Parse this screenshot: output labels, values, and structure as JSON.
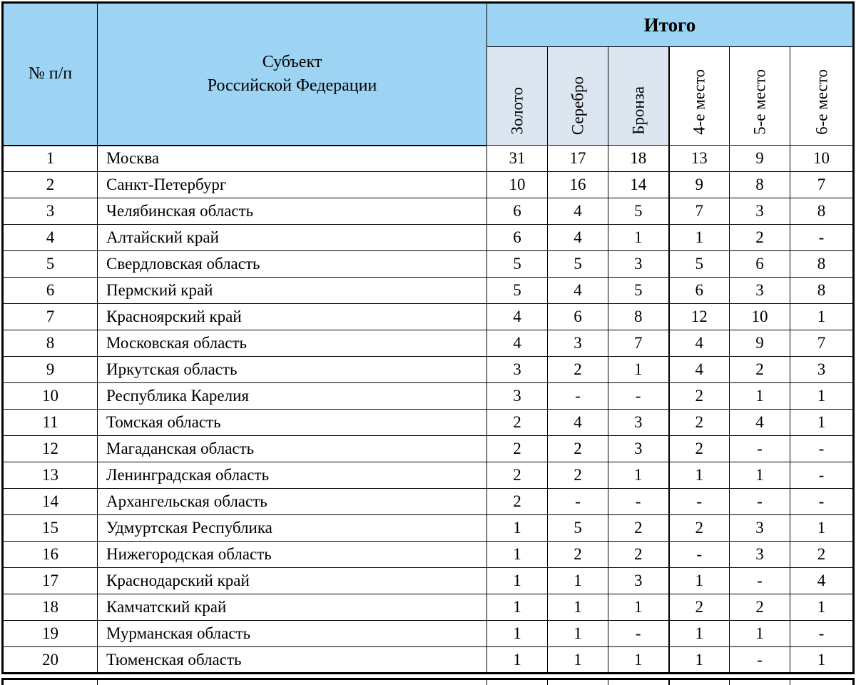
{
  "colors": {
    "header_bg": "#9DD4F3",
    "subheader_bg": "#DCE6F1",
    "border": "#000000",
    "text": "#000000"
  },
  "table": {
    "header": {
      "num_label": "№ п/п",
      "region_line1": "Субъект",
      "region_line2": "Российской Федерации",
      "group_label": "Итого",
      "subcols": [
        {
          "key": "gold",
          "label": "Золото",
          "shaded": true
        },
        {
          "key": "silver",
          "label": "Серебро",
          "shaded": true
        },
        {
          "key": "bronze",
          "label": "Бронза",
          "shaded": true
        },
        {
          "key": "place4",
          "label": "4-е место",
          "shaded": false
        },
        {
          "key": "place5",
          "label": "5-е место",
          "shaded": false
        },
        {
          "key": "place6",
          "label": "6-е место",
          "shaded": false
        }
      ]
    },
    "rows": [
      {
        "num": "1",
        "region": "Москва",
        "values": [
          "31",
          "17",
          "18",
          "13",
          "9",
          "10"
        ]
      },
      {
        "num": "2",
        "region": "Санкт-Петербург",
        "values": [
          "10",
          "16",
          "14",
          "9",
          "8",
          "7"
        ]
      },
      {
        "num": "3",
        "region": "Челябинская область",
        "values": [
          "6",
          "4",
          "5",
          "7",
          "3",
          "8"
        ]
      },
      {
        "num": "4",
        "region": "Алтайский край",
        "values": [
          "6",
          "4",
          "1",
          "1",
          "2",
          "-"
        ]
      },
      {
        "num": "5",
        "region": "Свердловская область",
        "values": [
          "5",
          "5",
          "3",
          "5",
          "6",
          "8"
        ]
      },
      {
        "num": "6",
        "region": "Пермский край",
        "values": [
          "5",
          "4",
          "5",
          "6",
          "3",
          "8"
        ]
      },
      {
        "num": "7",
        "region": "Красноярский край",
        "values": [
          "4",
          "6",
          "8",
          "12",
          "10",
          "1"
        ]
      },
      {
        "num": "8",
        "region": "Московская область",
        "values": [
          "4",
          "3",
          "7",
          "4",
          "9",
          "7"
        ]
      },
      {
        "num": "9",
        "region": "Иркутская область",
        "values": [
          "3",
          "2",
          "1",
          "4",
          "2",
          "3"
        ]
      },
      {
        "num": "10",
        "region": "Республика Карелия",
        "values": [
          "3",
          "-",
          "-",
          "2",
          "1",
          "1"
        ]
      },
      {
        "num": "11",
        "region": "Томская область",
        "values": [
          "2",
          "4",
          "3",
          "2",
          "4",
          "1"
        ]
      },
      {
        "num": "12",
        "region": "Магаданская область",
        "values": [
          "2",
          "2",
          "3",
          "2",
          "-",
          "-"
        ]
      },
      {
        "num": "13",
        "region": "Ленинградская область",
        "values": [
          "2",
          "2",
          "1",
          "1",
          "1",
          "-"
        ]
      },
      {
        "num": "14",
        "region": "Архангельская область",
        "values": [
          "2",
          "-",
          "-",
          "-",
          "-",
          "-"
        ]
      },
      {
        "num": "15",
        "region": "Удмуртская Республика",
        "values": [
          "1",
          "5",
          "2",
          "2",
          "3",
          "1"
        ]
      },
      {
        "num": "16",
        "region": "Нижегородская область",
        "values": [
          "1",
          "2",
          "2",
          "-",
          "3",
          "2"
        ]
      },
      {
        "num": "17",
        "region": "Краснодарский край",
        "values": [
          "1",
          "1",
          "3",
          "1",
          "-",
          "4"
        ]
      },
      {
        "num": "18",
        "region": "Камчатский край",
        "values": [
          "1",
          "1",
          "1",
          "2",
          "2",
          "1"
        ]
      },
      {
        "num": "19",
        "region": "Мурманская область",
        "values": [
          "1",
          "1",
          "-",
          "1",
          "1",
          "-"
        ]
      },
      {
        "num": "20",
        "region": "Тюменская область",
        "values": [
          "1",
          "1",
          "1",
          "1",
          "-",
          "1"
        ]
      }
    ]
  }
}
